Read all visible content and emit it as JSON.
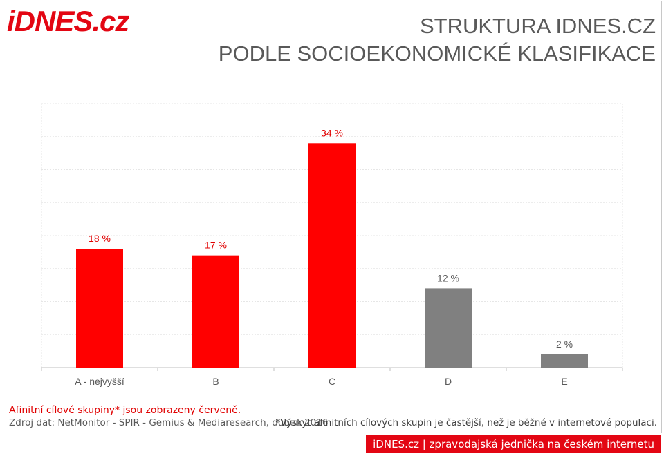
{
  "logo": {
    "name": "iDNES",
    "suffix": ".cz"
  },
  "title": {
    "line1": "STRUKTURA IDNES.CZ",
    "line2": "PODLE SOCIOEKONOMICKÉ KLASIFIKACE"
  },
  "colors": {
    "highlight": "#ff0000",
    "other": "#808080",
    "brand": "#e30613"
  },
  "chart_data": {
    "type": "bar",
    "categories": [
      "A - nejvyšší",
      "B",
      "C",
      "D",
      "E"
    ],
    "values": [
      18,
      17,
      34,
      12,
      2
    ],
    "value_labels": [
      "18 %",
      "17 %",
      "34 %",
      "12 %",
      "2 %"
    ],
    "highlighted": [
      true,
      true,
      true,
      false,
      false
    ],
    "ylim": [
      0,
      40
    ],
    "grid": true,
    "xlabel": "",
    "ylabel": ""
  },
  "notes": {
    "affinity": "Afinitní cílové skupiny* jsou zobrazeny červeně.",
    "source": "Zdroj dat: NetMonitor - SPIR - Gemius & Mediaresearch, duben 2016",
    "footnote": "*Výskyt afinitních cílových skupin je častější, než je běžné v internetové populaci."
  },
  "banner": "iDNES.cz | zpravodajská jednička na českém internetu"
}
